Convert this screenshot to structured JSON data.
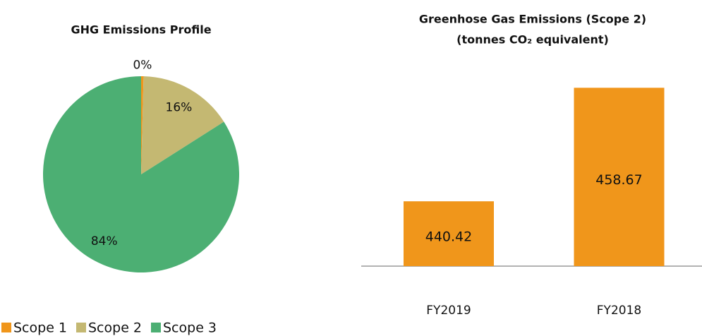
{
  "chart_data": [
    {
      "type": "pie",
      "title": "GHG Emissions Profile",
      "categories": [
        "Scope 1",
        "Scope 2",
        "Scope 3"
      ],
      "values": [
        0.4,
        15.6,
        84
      ],
      "value_labels": [
        "0%",
        "16%",
        "84%"
      ],
      "colors": [
        "#f0961b",
        "#c4b872",
        "#4caf73"
      ],
      "legend": "bottom-left"
    },
    {
      "type": "bar",
      "title": "Greenhose Gas Emissions (Scope 2)",
      "subtitle": "(tonnes CO₂ equivalent)",
      "categories": [
        "FY2019",
        "FY2018"
      ],
      "values": [
        440.42,
        458.67
      ],
      "color": "#f0961b",
      "ylim": [
        430,
        462
      ]
    }
  ]
}
